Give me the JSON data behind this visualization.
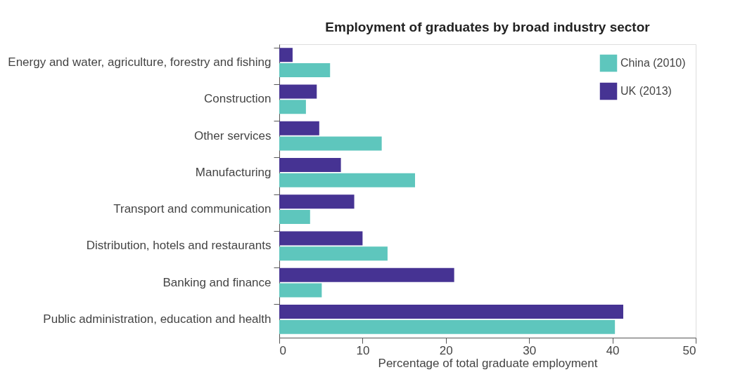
{
  "chart_data": {
    "type": "bar",
    "orientation": "horizontal",
    "title": "Employment of graduates by broad industry sector",
    "xlabel": "Percentage of total graduate employment",
    "categories": [
      "Energy and water, agriculture, forestry and fishing",
      "Construction",
      "Other services",
      "Manufacturing",
      "Transport and communication",
      "Distribution, hotels and restaurants",
      "Banking and finance",
      "Public administration, education and health"
    ],
    "series": [
      {
        "name": "China (2010)",
        "color": "#5ec6bd",
        "values": [
          6.1,
          3.2,
          12.3,
          16.3,
          3.7,
          13.0,
          5.1,
          40.3
        ]
      },
      {
        "name": "UK (2013)",
        "color": "#463393",
        "values": [
          1.6,
          4.5,
          4.8,
          7.4,
          9.0,
          10.0,
          21.0,
          41.3
        ]
      }
    ],
    "xlim": [
      0,
      50
    ],
    "xticks": [
      0,
      10,
      20,
      30,
      40,
      50
    ],
    "grid": false,
    "legend": "top right"
  }
}
